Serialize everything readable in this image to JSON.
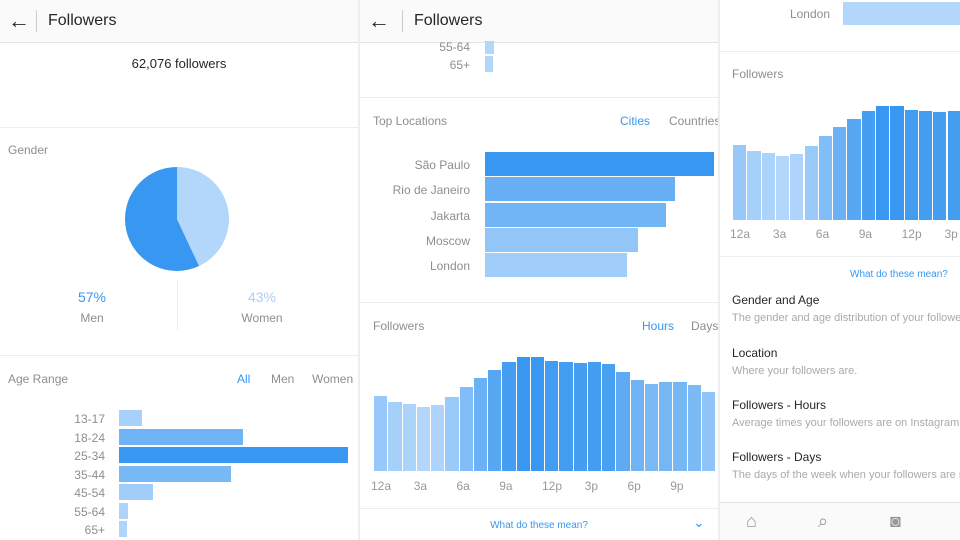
{
  "header": {
    "title": "Followers"
  },
  "summary": {
    "followers": "62,076 followers"
  },
  "gender": {
    "title": "Gender",
    "men_pct": 57,
    "women_pct": 43,
    "men_value": "57%",
    "women_value": "43%",
    "men_label": "Men",
    "women_label": "Women",
    "men_color": "#3897f0",
    "women_color": "#b3d7fb"
  },
  "age": {
    "title": "Age Range",
    "tabs": [
      "All",
      "Men",
      "Women"
    ],
    "labels": [
      "13-17",
      "18-24",
      "25-34",
      "35-44",
      "45-54",
      "55-64",
      "65+"
    ],
    "values": [
      10,
      54,
      100,
      49,
      15,
      4,
      3.5
    ]
  },
  "locations": {
    "title": "Top Locations",
    "tabs": [
      "Cities",
      "Countries"
    ],
    "labels": [
      "São Paulo",
      "Rio de Janeiro",
      "Jakarta",
      "Moscow",
      "London"
    ],
    "values": [
      100,
      83,
      79,
      67,
      62
    ]
  },
  "hours": {
    "title": "Followers",
    "tabs": [
      "Hours",
      "Days"
    ],
    "ticks": [
      "12a",
      "3a",
      "6a",
      "9a",
      "12p",
      "3p",
      "6p",
      "9p"
    ],
    "values": [
      223,
      206,
      198,
      189,
      195,
      220,
      250,
      277,
      301,
      323,
      339,
      339,
      327,
      325,
      322,
      325,
      319,
      293,
      271,
      259,
      265,
      264,
      256,
      234
    ]
  },
  "help": {
    "link": "What do these mean?",
    "items": [
      {
        "title": "Gender and Age",
        "desc": "The gender and age distribution of your followers."
      },
      {
        "title": "Location",
        "desc": "Where your followers are."
      },
      {
        "title": "Followers - Hours",
        "desc": "Average times your followers are on Instagram."
      },
      {
        "title": "Followers - Days",
        "desc": "The days of the week when your followers are most active."
      }
    ]
  }
}
